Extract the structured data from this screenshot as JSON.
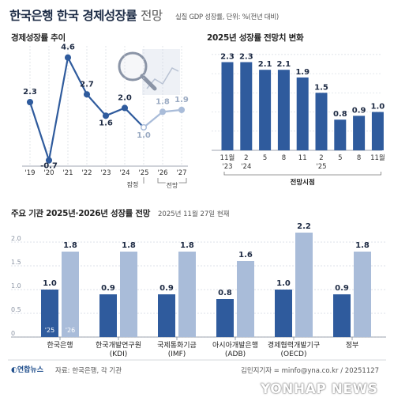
{
  "header": {
    "title_bold": "한국은행 한국 경제성장률",
    "title_light": "전망",
    "unit": "실질 GDP 성장률, 단위: %(전년 대비)"
  },
  "panel1": {
    "subtitle": "경제성장률 추이",
    "marker_estimate": "잠정",
    "marker_forecast": "전망"
  },
  "panel2": {
    "subtitle": "2025년 성장률 전망치 변화",
    "bracket_label": "전망시점"
  },
  "panel3": {
    "subtitle": "주요 기관 2025년·2026년 성장률 전망",
    "date": "2025년 11월 27일 현재"
  },
  "footer": {
    "logo": "연합뉴스",
    "source": "자료: 한국은행, 각 기관",
    "credit": "김민지기자 = minfo@yna.co.kr / 20251127",
    "watermark": "YONHAP NEWS"
  },
  "colors": {
    "dark": "#2f5b9d",
    "light": "#a9bcd9",
    "axis": "#7f8896",
    "text": "#222222"
  },
  "chart_data": [
    {
      "type": "line",
      "title": "경제성장률 추이",
      "x": [
        "'19",
        "'20",
        "'21",
        "'22",
        "'23",
        "'24",
        "'25",
        "'26",
        "'27"
      ],
      "values": [
        2.3,
        -0.7,
        4.6,
        2.7,
        1.6,
        2.0,
        1.0,
        1.8,
        1.9
      ],
      "value_labels": [
        "2.3",
        "-0.7",
        "4.6",
        "2.7",
        "1.6",
        "2.0",
        "1.0",
        "1.8",
        "1.9"
      ],
      "estimate_index": 6,
      "forecast_indices": [
        7,
        8
      ],
      "ylim": [
        -1,
        5.2
      ],
      "grid": true
    },
    {
      "type": "bar",
      "title": "2025년 성장률 전망치 변화",
      "categories": [
        [
          "11월",
          "'23"
        ],
        [
          "2",
          "'24"
        ],
        [
          "5",
          ""
        ],
        [
          "8",
          ""
        ],
        [
          "11",
          ""
        ],
        [
          "2",
          "'25"
        ],
        [
          "5",
          ""
        ],
        [
          "8",
          ""
        ],
        [
          "11월",
          ""
        ]
      ],
      "values": [
        2.3,
        2.3,
        2.1,
        2.1,
        1.9,
        1.5,
        0.8,
        0.9,
        1.0
      ],
      "value_labels": [
        "2.3",
        "2.3",
        "2.1",
        "2.1",
        "1.9",
        "1.5",
        "0.8",
        "0.9",
        "1.0"
      ],
      "xlabel": "전망시점",
      "ylim": [
        0,
        2.6
      ],
      "grid": true
    },
    {
      "type": "bar",
      "title": "주요 기관 2025년·2026년 성장률 전망",
      "categories": [
        [
          "한국은행",
          ""
        ],
        [
          "한국개발연구원",
          "(KDI)"
        ],
        [
          "국제통화기금",
          "(IMF)"
        ],
        [
          "아시아개발은행",
          "(ADB)"
        ],
        [
          "경제협력개발기구",
          "(OECD)"
        ],
        [
          "정부",
          ""
        ]
      ],
      "series": [
        {
          "name": "'25",
          "values": [
            1.0,
            0.9,
            0.9,
            0.8,
            1.0,
            0.9
          ],
          "labels": [
            "1.0",
            "0.9",
            "0.9",
            "0.8",
            "1.0",
            "0.9"
          ]
        },
        {
          "name": "'26",
          "values": [
            1.8,
            1.8,
            1.8,
            1.6,
            2.2,
            1.8
          ],
          "labels": [
            "1.8",
            "1.8",
            "1.8",
            "1.6",
            "2.2",
            "1.8"
          ]
        }
      ],
      "yticks": [
        "2.0",
        "1.5",
        "1.0",
        "0.5",
        "0"
      ],
      "ylim": [
        0,
        2.4
      ],
      "grid": true
    }
  ]
}
